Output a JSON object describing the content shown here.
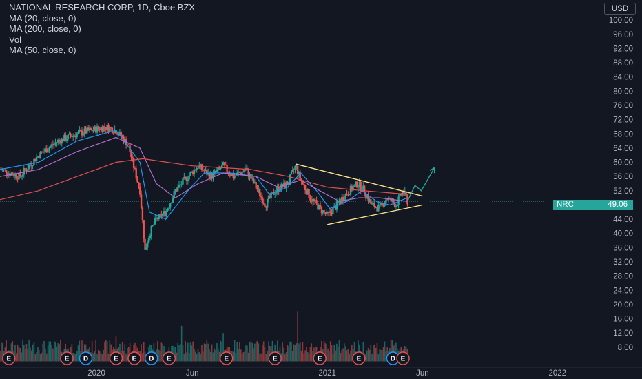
{
  "legend": {
    "title": "NATIONAL RESEARCH CORP, 1D, Cboe BZX",
    "lines": [
      "MA (20, close, 0)",
      "MA (200, close, 0)",
      "Vol",
      "MA (50, close, 0)"
    ]
  },
  "price_tag": {
    "symbol": "NRC",
    "value": "49.06"
  },
  "currency": "USD",
  "colors": {
    "background": "#131722",
    "up": "#26a69a",
    "down": "#ef5350",
    "ma20": "#2196f3",
    "ma200": "#e05252",
    "ma50": "#b06fc9",
    "trendline": "#fde58a",
    "projection": "#26a69a",
    "event_e": "#e05252",
    "event_d": "#2196f3"
  },
  "chart_data": {
    "type": "candlestick",
    "title": "NATIONAL RESEARCH CORP, 1D, Cboe BZX",
    "y_ticks": [
      "100.00",
      "96.00",
      "92.00",
      "88.00",
      "84.00",
      "80.00",
      "76.00",
      "72.00",
      "68.00",
      "64.00",
      "60.00",
      "56.00",
      "52.00",
      "48.00",
      "44.00",
      "40.00",
      "36.00",
      "32.00",
      "28.00",
      "24.00",
      "20.00",
      "16.00",
      "12.00",
      "8.00"
    ],
    "ylim": [
      4,
      104
    ],
    "x_ticks": [
      {
        "label": "2020",
        "date": "2020-01-01"
      },
      {
        "label": "Jun",
        "date": "2020-06-01"
      },
      {
        "label": "2021",
        "date": "2021-01-01"
      },
      {
        "label": "Jun",
        "date": "2021-06-01"
      },
      {
        "label": "2022",
        "date": "2022-01-01"
      }
    ],
    "xlim": [
      "2019-08-01",
      "2022-05-15"
    ],
    "last_price": 49.06,
    "close_path": [
      [
        "2019-08-01",
        58
      ],
      [
        "2019-09-01",
        56
      ],
      [
        "2019-10-01",
        62
      ],
      [
        "2019-11-01",
        66
      ],
      [
        "2019-12-01",
        68
      ],
      [
        "2020-01-15",
        70
      ],
      [
        "2020-02-01",
        69
      ],
      [
        "2020-02-20",
        65
      ],
      [
        "2020-03-10",
        52
      ],
      [
        "2020-03-18",
        35
      ],
      [
        "2020-03-25",
        40
      ],
      [
        "2020-04-05",
        44
      ],
      [
        "2020-04-20",
        46
      ],
      [
        "2020-05-05",
        52
      ],
      [
        "2020-05-25",
        56
      ],
      [
        "2020-06-10",
        59
      ],
      [
        "2020-07-01",
        56
      ],
      [
        "2020-07-20",
        59
      ],
      [
        "2020-08-05",
        56
      ],
      [
        "2020-08-25",
        58
      ],
      [
        "2020-09-10",
        53
      ],
      [
        "2020-09-25",
        48
      ],
      [
        "2020-10-10",
        52
      ],
      [
        "2020-10-30",
        54
      ],
      [
        "2020-11-12",
        59
      ],
      [
        "2020-11-20",
        55
      ],
      [
        "2020-12-05",
        50
      ],
      [
        "2020-12-20",
        47
      ],
      [
        "2021-01-01",
        45
      ],
      [
        "2021-01-12",
        47
      ],
      [
        "2021-01-25",
        50
      ],
      [
        "2021-02-05",
        52
      ],
      [
        "2021-02-18",
        54
      ],
      [
        "2021-03-01",
        52
      ],
      [
        "2021-03-12",
        48
      ],
      [
        "2021-03-25",
        47
      ],
      [
        "2021-04-05",
        50
      ],
      [
        "2021-04-20",
        48
      ],
      [
        "2021-05-01",
        52
      ],
      [
        "2021-05-08",
        49.06
      ]
    ],
    "series": [
      {
        "name": "MA (20, close, 0)",
        "color": "#2196f3",
        "points": [
          [
            "2019-08-01",
            58
          ],
          [
            "2019-10-01",
            60
          ],
          [
            "2019-12-01",
            66
          ],
          [
            "2020-02-01",
            69
          ],
          [
            "2020-03-10",
            60
          ],
          [
            "2020-03-25",
            46
          ],
          [
            "2020-04-20",
            44
          ],
          [
            "2020-05-25",
            52
          ],
          [
            "2020-06-20",
            57
          ],
          [
            "2020-08-01",
            57
          ],
          [
            "2020-09-10",
            56
          ],
          [
            "2020-10-01",
            51
          ],
          [
            "2020-10-30",
            53
          ],
          [
            "2020-11-20",
            57
          ],
          [
            "2020-12-15",
            52
          ],
          [
            "2021-01-05",
            47
          ],
          [
            "2021-02-01",
            49
          ],
          [
            "2021-02-25",
            52
          ],
          [
            "2021-03-20",
            49
          ],
          [
            "2021-04-10",
            48
          ],
          [
            "2021-05-08",
            50
          ]
        ]
      },
      {
        "name": "MA (50, close, 0)",
        "color": "#b06fc9",
        "points": [
          [
            "2019-08-01",
            56
          ],
          [
            "2019-10-01",
            58
          ],
          [
            "2019-12-01",
            63
          ],
          [
            "2020-02-01",
            67
          ],
          [
            "2020-03-10",
            64
          ],
          [
            "2020-04-05",
            54
          ],
          [
            "2020-05-05",
            50
          ],
          [
            "2020-06-10",
            54
          ],
          [
            "2020-07-20",
            57
          ],
          [
            "2020-09-10",
            56
          ],
          [
            "2020-10-15",
            53
          ],
          [
            "2020-11-20",
            55
          ],
          [
            "2020-12-20",
            52
          ],
          [
            "2021-01-20",
            49
          ],
          [
            "2021-02-20",
            50
          ],
          [
            "2021-03-25",
            50
          ],
          [
            "2021-05-08",
            49
          ]
        ]
      },
      {
        "name": "MA (200, close, 0)",
        "color": "#e05252",
        "points": [
          [
            "2019-08-01",
            49.5
          ],
          [
            "2019-10-01",
            52
          ],
          [
            "2019-12-01",
            56
          ],
          [
            "2020-02-01",
            60
          ],
          [
            "2020-03-15",
            61
          ],
          [
            "2020-06-01",
            59
          ],
          [
            "2020-09-01",
            58
          ],
          [
            "2020-11-01",
            56
          ],
          [
            "2021-01-01",
            53
          ],
          [
            "2021-03-01",
            52
          ],
          [
            "2021-05-08",
            51
          ]
        ]
      }
    ],
    "volume": [
      {
        "date": "2019-10-15",
        "value": 17
      },
      {
        "date": "2019-12-10",
        "value": 12
      },
      {
        "date": "2020-02-01",
        "value": 11
      },
      {
        "date": "2020-03-15",
        "value": 15
      },
      {
        "date": "2020-04-10",
        "value": 11
      },
      {
        "date": "2020-05-15",
        "value": 14
      },
      {
        "date": "2020-06-15",
        "value": 11
      },
      {
        "date": "2020-07-01",
        "value": 30
      },
      {
        "date": "2020-07-20",
        "value": 12
      },
      {
        "date": "2020-09-15",
        "value": 10
      },
      {
        "date": "2020-11-15",
        "value": 18
      },
      {
        "date": "2021-01-05",
        "value": 14
      },
      {
        "date": "2021-02-20",
        "value": 12
      },
      {
        "date": "2021-03-20",
        "value": 16
      },
      {
        "date": "2021-05-01",
        "value": 12
      }
    ],
    "annotations": {
      "resistance_line": [
        [
          "2020-11-12",
          59.5
        ],
        [
          "2021-06-01",
          50.5
        ]
      ],
      "support_line": [
        [
          "2021-01-01",
          42.5
        ],
        [
          "2021-06-01",
          48
        ]
      ],
      "projection_arrow": [
        [
          "2021-05-08",
          49
        ],
        [
          "2021-05-20",
          53.5
        ],
        [
          "2021-05-30",
          52
        ],
        [
          "2021-06-20",
          58.5
        ]
      ],
      "events": [
        {
          "date": "2019-08-15",
          "label": "E"
        },
        {
          "date": "2019-11-15",
          "label": "E"
        },
        {
          "date": "2019-12-15",
          "label": "D"
        },
        {
          "date": "2020-02-01",
          "label": "E"
        },
        {
          "date": "2020-03-01",
          "label": "E"
        },
        {
          "date": "2020-03-28",
          "label": "D"
        },
        {
          "date": "2020-04-25",
          "label": "E"
        },
        {
          "date": "2020-07-25",
          "label": "E"
        },
        {
          "date": "2020-10-10",
          "label": "E"
        },
        {
          "date": "2020-12-20",
          "label": "E"
        },
        {
          "date": "2021-02-20",
          "label": "E"
        },
        {
          "date": "2021-04-15",
          "label": "D"
        },
        {
          "date": "2021-05-01",
          "label": "E"
        }
      ]
    }
  }
}
